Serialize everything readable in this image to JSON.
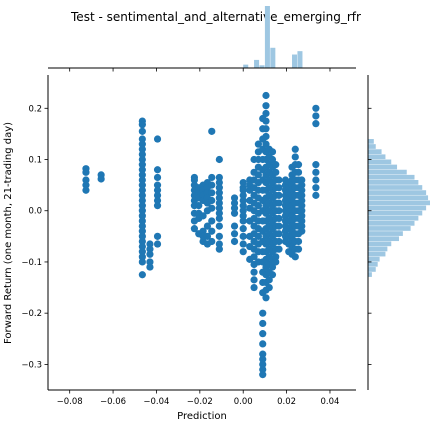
{
  "chart_data": {
    "type": "scatter",
    "title": "Test - sentimental_and_alternative_emerging_rfr",
    "xlabel": "Prediction",
    "ylabel": "Forward Return (one month, 21-trading day)",
    "xlim": [
      -0.09,
      0.052
    ],
    "ylim": [
      -0.35,
      0.265
    ],
    "xticks": [
      "−0.08",
      "−0.06",
      "−0.04",
      "−0.02",
      "0.00",
      "0.02",
      "0.04"
    ],
    "xtick_values": [
      -0.08,
      -0.06,
      -0.04,
      -0.02,
      0.0,
      0.02,
      0.04
    ],
    "yticks": [
      "−0.3",
      "−0.2",
      "−0.1",
      "0.0",
      "0.1",
      "0.2"
    ],
    "ytick_values": [
      -0.3,
      -0.2,
      -0.1,
      0.0,
      0.1,
      0.2
    ],
    "grid": false,
    "colors": {
      "points": "#1f77b4",
      "hist": "#9ec7e2",
      "axis": "#000000"
    },
    "point_groups": [
      {
        "x": -0.0725,
        "y": [
          0.082,
          0.075,
          0.06,
          0.05,
          0.04
        ]
      },
      {
        "x": -0.0655,
        "y": [
          0.07,
          0.062
        ]
      },
      {
        "x": -0.0465,
        "y": [
          0.175,
          0.168,
          0.155,
          0.14,
          0.13,
          0.12,
          0.11,
          0.1,
          0.09,
          0.08,
          0.07,
          0.06,
          0.05,
          0.04,
          0.03,
          0.02,
          0.01,
          0.0,
          -0.01,
          -0.02,
          -0.03,
          -0.04,
          -0.05,
          -0.06,
          -0.07,
          -0.08,
          -0.09,
          -0.1,
          -0.125
        ]
      },
      {
        "x": -0.043,
        "y": [
          -0.065,
          -0.075,
          -0.085,
          -0.1,
          -0.11
        ]
      },
      {
        "x": -0.0395,
        "y": [
          0.14,
          0.08,
          0.065,
          0.05,
          0.04,
          0.03,
          0.02,
          0.01,
          -0.05,
          -0.065
        ]
      },
      {
        "x": -0.0225,
        "y": [
          0.065,
          0.06,
          0.05,
          0.04,
          0.03,
          0.02,
          0.01,
          -0.005,
          -0.02,
          -0.035
        ]
      },
      {
        "x": -0.0205,
        "y": [
          0.045,
          0.035,
          0.025,
          0.01,
          -0.005,
          -0.015,
          -0.045
        ]
      },
      {
        "x": -0.0185,
        "y": [
          0.05,
          0.04,
          0.03,
          0.02,
          -0.01,
          -0.04,
          -0.05,
          -0.06
        ]
      },
      {
        "x": -0.0165,
        "y": [
          0.055,
          0.045,
          0.035,
          0.025,
          0.015,
          0.0,
          -0.03,
          -0.05,
          -0.065
        ]
      },
      {
        "x": -0.0145,
        "y": [
          0.155,
          0.065,
          0.05,
          0.035,
          0.02,
          0.005,
          -0.02,
          -0.04,
          -0.06
        ]
      },
      {
        "x": -0.011,
        "y": [
          0.1,
          0.065,
          0.055,
          0.045,
          0.035,
          0.025,
          0.015,
          0.005,
          -0.005,
          -0.015,
          -0.03,
          -0.05,
          -0.065,
          -0.075
        ]
      },
      {
        "x": -0.004,
        "y": [
          0.025,
          0.015,
          0.005,
          -0.005,
          -0.03,
          -0.045,
          -0.06
        ]
      },
      {
        "x": 0.0,
        "y": [
          0.055,
          0.045,
          0.04,
          0.03,
          0.02,
          0.01,
          0.0,
          -0.01,
          -0.02,
          -0.035,
          -0.05,
          -0.065,
          -0.08
        ]
      },
      {
        "x": 0.003,
        "y": [
          0.06,
          0.05,
          0.04,
          0.02,
          0.005,
          -0.02,
          -0.05,
          -0.07,
          -0.095
        ]
      },
      {
        "x": 0.005,
        "y": [
          0.1,
          0.075,
          0.06,
          0.045,
          0.03,
          0.015,
          0.0,
          -0.015,
          -0.03,
          -0.045,
          -0.06,
          -0.075,
          -0.09,
          -0.105,
          -0.12,
          -0.135,
          -0.15
        ]
      },
      {
        "x": 0.007,
        "y": [
          0.13,
          0.115,
          0.1,
          0.085,
          0.07,
          0.055,
          0.04,
          0.025,
          0.01,
          -0.005,
          -0.02,
          -0.035,
          -0.05,
          -0.065,
          -0.08,
          -0.1
        ]
      },
      {
        "x": 0.009,
        "y": [
          0.18,
          0.16,
          0.14,
          0.12,
          0.1,
          0.08,
          0.06,
          0.04,
          0.02,
          0.0,
          -0.02,
          -0.04,
          -0.06,
          -0.08,
          -0.1,
          -0.12,
          -0.14,
          -0.16,
          -0.2,
          -0.22,
          -0.24,
          -0.26,
          -0.28,
          -0.29,
          -0.3,
          -0.31,
          -0.32
        ]
      },
      {
        "x": 0.0105,
        "y": [
          0.225,
          0.205,
          0.19,
          0.175,
          0.16,
          0.145,
          0.13,
          0.115,
          0.1,
          0.085,
          0.07,
          0.055,
          0.04,
          0.025,
          0.01,
          -0.005,
          -0.02,
          -0.035,
          -0.05,
          -0.065,
          -0.08,
          -0.095,
          -0.11,
          -0.125,
          -0.14,
          -0.155,
          -0.17
        ]
      },
      {
        "x": 0.012,
        "y": [
          0.12,
          0.105,
          0.09,
          0.075,
          0.06,
          0.045,
          0.03,
          0.015,
          0.0,
          -0.015,
          -0.03,
          -0.045,
          -0.06,
          -0.075,
          -0.09,
          -0.105,
          -0.12,
          -0.135,
          -0.15
        ]
      },
      {
        "x": 0.0135,
        "y": [
          0.115,
          0.1,
          0.085,
          0.07,
          0.055,
          0.04,
          0.025,
          0.01,
          -0.005,
          -0.02,
          -0.035,
          -0.05,
          -0.065,
          -0.08,
          -0.095,
          -0.11,
          -0.125
        ]
      },
      {
        "x": 0.015,
        "y": [
          0.09,
          0.075,
          0.06,
          0.045,
          0.03,
          0.015,
          0.0,
          -0.015,
          -0.03,
          -0.045,
          -0.06,
          -0.075,
          -0.09,
          -0.1
        ]
      },
      {
        "x": 0.0165,
        "y": [
          0.06,
          0.045,
          0.03,
          0.015,
          0.0,
          -0.015,
          -0.03,
          -0.045,
          -0.06,
          -0.075
        ]
      },
      {
        "x": 0.0195,
        "y": [
          0.06,
          0.05,
          0.04,
          0.03,
          0.02,
          0.01,
          0.0,
          -0.01,
          -0.02,
          -0.03,
          -0.04,
          -0.05,
          -0.06
        ]
      },
      {
        "x": 0.021,
        "y": [
          0.055,
          0.045,
          0.035,
          0.025,
          0.015,
          0.005,
          -0.005,
          -0.02,
          -0.035,
          -0.05,
          -0.065,
          -0.08
        ]
      },
      {
        "x": 0.0225,
        "y": [
          0.085,
          0.07,
          0.06,
          0.05,
          0.04,
          0.03,
          0.02,
          0.01,
          0.0,
          -0.01,
          -0.02,
          -0.03,
          -0.04,
          -0.05,
          -0.06,
          -0.07,
          -0.085
        ]
      },
      {
        "x": 0.024,
        "y": [
          0.12,
          0.105,
          0.09,
          0.075,
          0.06,
          0.045,
          0.03,
          0.015,
          0.0,
          -0.015,
          -0.03,
          -0.045,
          -0.06,
          -0.075,
          -0.09
        ]
      },
      {
        "x": 0.0255,
        "y": [
          0.09,
          0.075,
          0.06,
          0.045,
          0.03,
          0.015,
          0.0,
          -0.015,
          -0.03,
          -0.045,
          -0.06,
          -0.075
        ]
      },
      {
        "x": 0.027,
        "y": [
          0.06,
          0.05,
          0.04,
          0.03,
          0.02,
          0.01,
          0.0,
          -0.01,
          -0.02,
          -0.03,
          -0.04
        ]
      },
      {
        "x": 0.0335,
        "y": [
          0.2,
          0.185,
          0.17,
          0.09,
          0.075,
          0.06,
          0.045,
          0.03
        ]
      }
    ],
    "marginal_x": {
      "bin_edges": [
        0.0,
        0.0025,
        0.005,
        0.0075,
        0.01,
        0.0125,
        0.015,
        0.0175,
        0.02,
        0.0225,
        0.025,
        0.0275,
        0.03,
        0.0325
      ],
      "counts": [
        5,
        0,
        12,
        4,
        92,
        30,
        0,
        0,
        0,
        20,
        25,
        0,
        0,
        6
      ]
    },
    "marginal_y": {
      "bin_edges": [
        -0.13,
        -0.12,
        -0.11,
        -0.1,
        -0.09,
        -0.08,
        -0.07,
        -0.06,
        -0.05,
        -0.04,
        -0.03,
        -0.02,
        -0.01,
        0.0,
        0.01,
        0.02,
        0.03,
        0.04,
        0.05,
        0.06,
        0.07,
        0.08,
        0.09,
        0.1,
        0.11,
        0.12,
        0.13,
        0.14
      ],
      "counts": [
        2,
        4,
        5,
        6,
        9,
        10,
        12,
        16,
        18,
        22,
        24,
        26,
        28,
        30,
        32,
        31,
        30,
        28,
        26,
        24,
        20,
        15,
        12,
        9,
        7,
        4,
        3
      ]
    }
  }
}
